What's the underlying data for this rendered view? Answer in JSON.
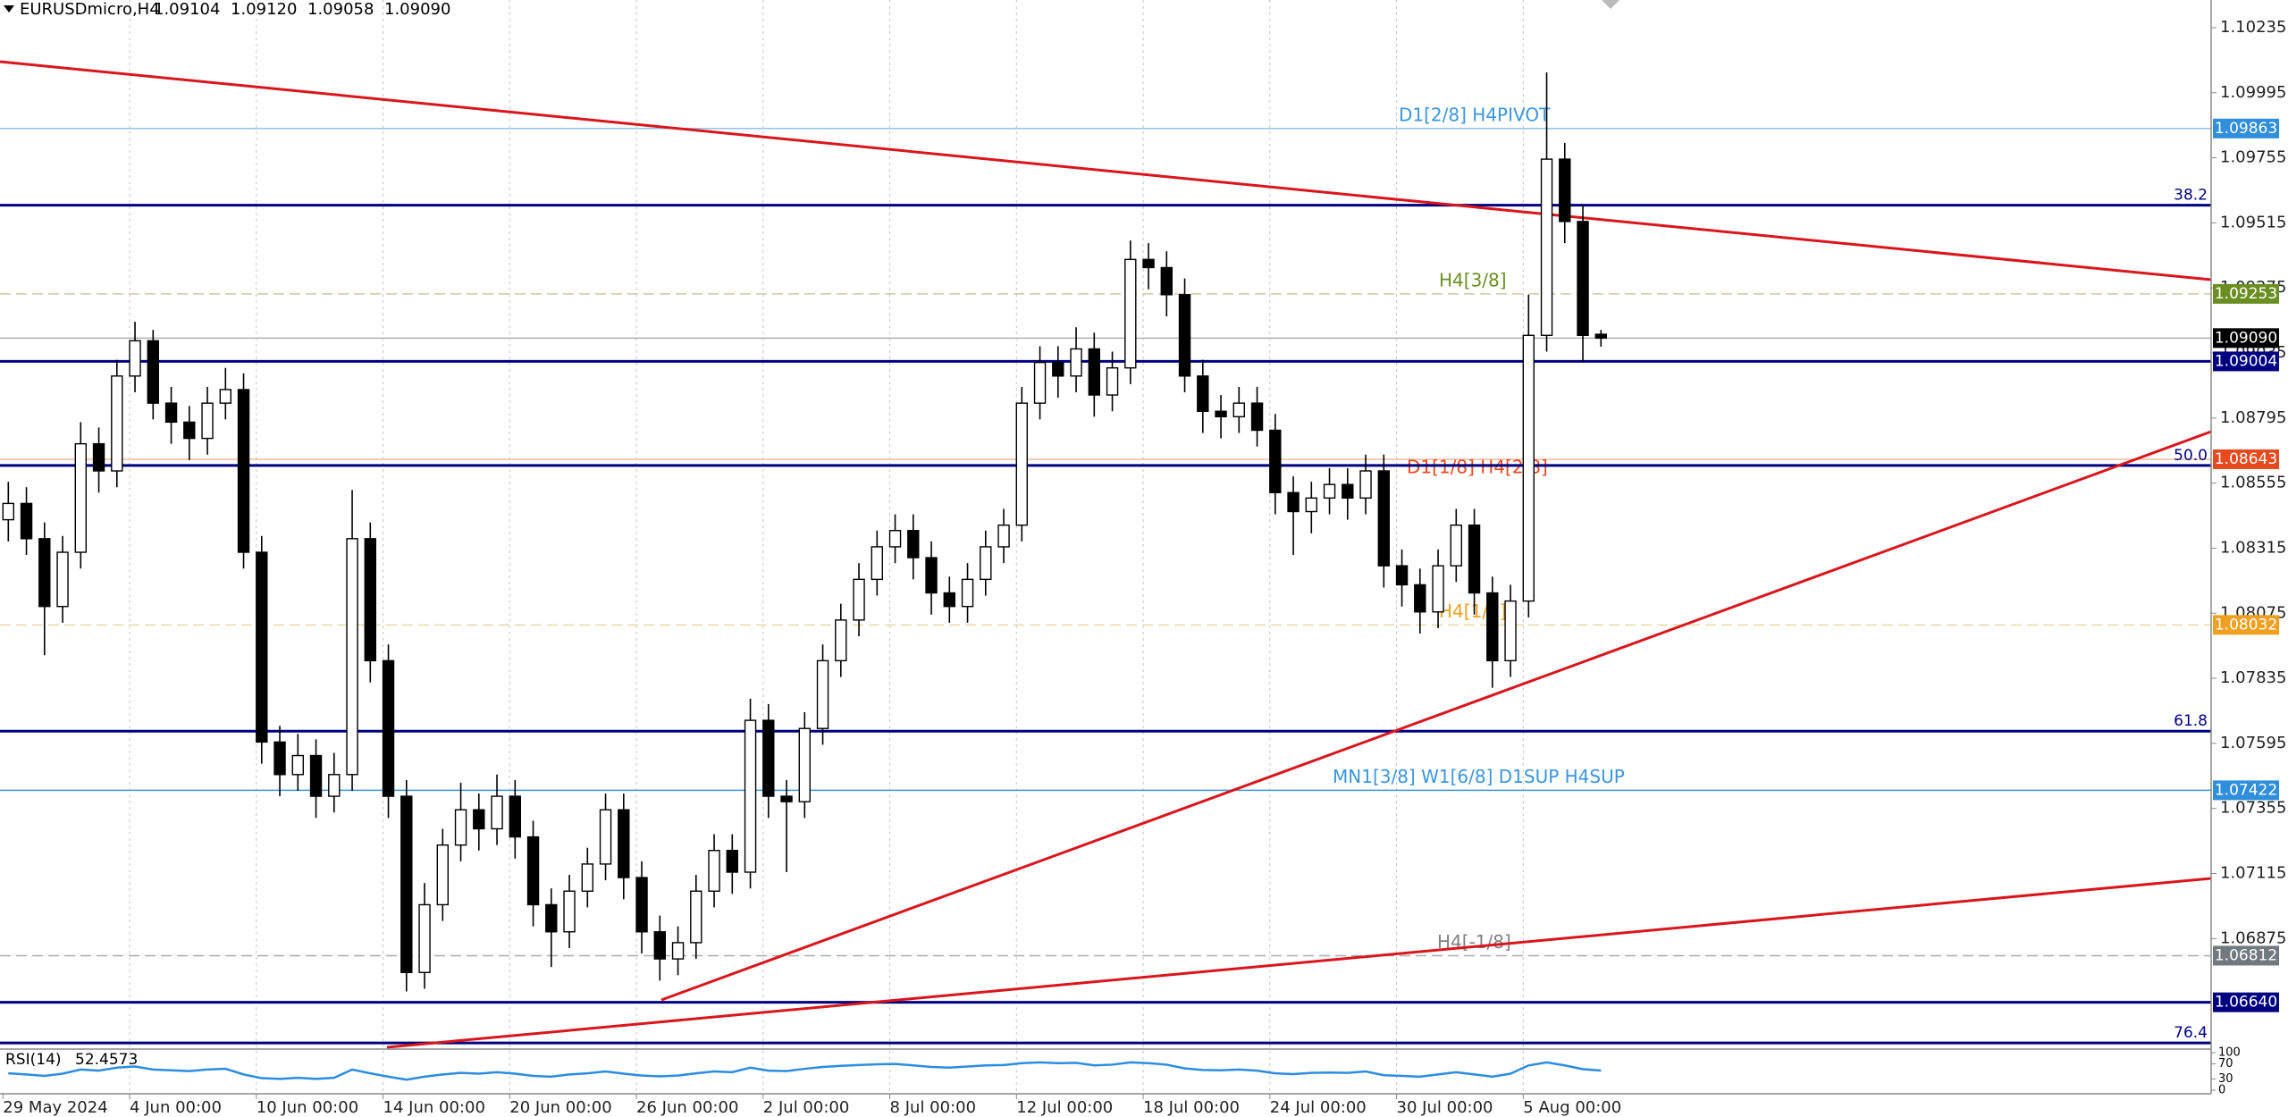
{
  "chart_data": {
    "type": "candlestick",
    "title": "EURUSDmicro,H4",
    "last_labels": [
      "1.09104",
      "1.09120",
      "1.09058",
      "1.09090"
    ],
    "categories": [
      "29 May 2024",
      null,
      null,
      null,
      null,
      null,
      null,
      "4 Jun 00:00",
      null,
      null,
      null,
      null,
      null,
      null,
      "10 Jun 00:00",
      null,
      null,
      null,
      null,
      null,
      null,
      "14 Jun 00:00",
      null,
      null,
      null,
      null,
      null,
      null,
      "20 Jun 00:00",
      null,
      null,
      null,
      null,
      null,
      null,
      "26 Jun 00:00",
      null,
      null,
      null,
      null,
      null,
      null,
      "2 Jul 00:00",
      null,
      null,
      null,
      null,
      null,
      null,
      "8 Jul 00:00",
      null,
      null,
      null,
      null,
      null,
      null,
      "12 Jul 00:00",
      null,
      null,
      null,
      null,
      null,
      null,
      "18 Jul 00:00",
      null,
      null,
      null,
      null,
      null,
      null,
      "24 Jul 00:00",
      null,
      null,
      null,
      null,
      null,
      null,
      "30 Jul 00:00",
      null,
      null,
      null,
      null,
      null,
      null,
      "5 Aug 00:00",
      null,
      null,
      null,
      null
    ],
    "open": [
      1.0842,
      1.0848,
      1.0835,
      1.081,
      1.083,
      1.087,
      1.086,
      1.0895,
      1.0908,
      1.0885,
      1.0878,
      1.0872,
      1.0885,
      1.089,
      1.083,
      1.076,
      1.0748,
      1.0755,
      1.074,
      1.0748,
      1.0835,
      1.079,
      1.074,
      1.0675,
      1.07,
      1.0722,
      1.0735,
      1.0728,
      1.074,
      1.0725,
      1.07,
      1.069,
      1.0705,
      1.0715,
      1.0735,
      1.071,
      1.069,
      1.068,
      1.0686,
      1.0705,
      1.072,
      1.0712,
      1.0768,
      1.074,
      1.0738,
      1.0765,
      1.079,
      1.0805,
      1.082,
      1.0832,
      1.0838,
      1.0828,
      1.0815,
      1.081,
      1.082,
      1.0832,
      1.084,
      1.0885,
      1.09,
      1.0895,
      1.0905,
      1.0888,
      1.0898,
      1.0938,
      1.0935,
      1.0925,
      1.0895,
      1.0882,
      1.088,
      1.0885,
      1.0875,
      1.0852,
      1.0845,
      1.085,
      1.0855,
      1.085,
      1.086,
      1.0825,
      1.0818,
      1.0808,
      1.0825,
      1.084,
      1.0815,
      1.079,
      1.0812,
      1.091,
      1.0975,
      1.0952,
      1.09104
    ],
    "high": [
      1.0856,
      1.0854,
      1.0841,
      1.0836,
      1.0878,
      1.0876,
      1.0901,
      1.0915,
      1.0912,
      1.0891,
      1.0884,
      1.0891,
      1.0898,
      1.0896,
      1.0836,
      1.0766,
      1.0763,
      1.0761,
      1.0756,
      1.0853,
      1.0841,
      1.0796,
      1.0746,
      1.0708,
      1.0728,
      1.0745,
      1.0741,
      1.0748,
      1.0746,
      1.0731,
      1.0706,
      1.0711,
      1.0721,
      1.0741,
      1.0741,
      1.0716,
      1.0696,
      1.0692,
      1.0711,
      1.0726,
      1.0726,
      1.0776,
      1.0774,
      1.0746,
      1.0771,
      1.0796,
      1.0811,
      1.0826,
      1.0838,
      1.0844,
      1.0844,
      1.0834,
      1.0821,
      1.0826,
      1.0838,
      1.0846,
      1.0891,
      1.0906,
      1.0906,
      1.0913,
      1.0911,
      1.0904,
      1.0945,
      1.0944,
      1.0941,
      1.0931,
      1.0901,
      1.0888,
      1.0891,
      1.0891,
      1.0881,
      1.0858,
      1.0856,
      1.0861,
      1.0861,
      1.0866,
      1.0866,
      1.0831,
      1.0824,
      1.0831,
      1.0846,
      1.0846,
      1.0821,
      1.0818,
      1.0925,
      1.1007,
      1.0981,
      1.0958,
      1.0912
    ],
    "low": [
      1.0834,
      1.0829,
      1.0792,
      1.0804,
      1.0824,
      1.0852,
      1.0854,
      1.0889,
      1.0879,
      1.087,
      1.0864,
      1.0866,
      1.0879,
      1.0824,
      1.0752,
      1.074,
      1.0742,
      1.0732,
      1.0734,
      1.0742,
      1.0782,
      1.0732,
      1.0668,
      1.0669,
      1.0694,
      1.0716,
      1.072,
      1.0722,
      1.0717,
      1.0692,
      1.0677,
      1.0684,
      1.0699,
      1.0709,
      1.0702,
      1.0682,
      1.0672,
      1.0674,
      1.068,
      1.0699,
      1.0704,
      1.0706,
      1.0732,
      1.0712,
      1.0732,
      1.0759,
      1.0784,
      1.0799,
      1.0814,
      1.0826,
      1.082,
      1.0807,
      1.0804,
      1.0804,
      1.0814,
      1.0826,
      1.0834,
      1.0879,
      1.0887,
      1.0889,
      1.088,
      1.0882,
      1.0892,
      1.0927,
      1.0917,
      1.0889,
      1.0874,
      1.0872,
      1.0874,
      1.0869,
      1.0844,
      1.0829,
      1.0837,
      1.0844,
      1.0842,
      1.0844,
      1.0817,
      1.081,
      1.08,
      1.0802,
      1.0819,
      1.0807,
      1.078,
      1.0784,
      1.0806,
      1.0904,
      1.0944,
      1.09,
      1.09058
    ],
    "close": [
      1.0848,
      1.0835,
      1.081,
      1.083,
      1.087,
      1.086,
      1.0895,
      1.0908,
      1.0885,
      1.0878,
      1.0872,
      1.0885,
      1.089,
      1.083,
      1.076,
      1.0748,
      1.0755,
      1.074,
      1.0748,
      1.0835,
      1.079,
      1.074,
      1.0675,
      1.07,
      1.0722,
      1.0735,
      1.0728,
      1.074,
      1.0725,
      1.07,
      1.069,
      1.0705,
      1.0715,
      1.0735,
      1.071,
      1.069,
      1.068,
      1.0686,
      1.0705,
      1.072,
      1.0712,
      1.0768,
      1.074,
      1.0738,
      1.0765,
      1.079,
      1.0805,
      1.082,
      1.0832,
      1.0838,
      1.0828,
      1.0815,
      1.081,
      1.082,
      1.0832,
      1.084,
      1.0885,
      1.09,
      1.0895,
      1.0905,
      1.0888,
      1.0898,
      1.0938,
      1.0935,
      1.0925,
      1.0895,
      1.0882,
      1.088,
      1.0885,
      1.0875,
      1.0852,
      1.0845,
      1.085,
      1.0855,
      1.085,
      1.086,
      1.0825,
      1.0818,
      1.0808,
      1.0825,
      1.084,
      1.0815,
      1.079,
      1.0812,
      1.091,
      1.0975,
      1.0952,
      1.091,
      1.0909
    ],
    "up_color": "#ffffff",
    "down_color": "#000000",
    "wick_color": "#000000",
    "ylim": [
      1.06474,
      1.10337
    ],
    "yticks": [
      1.10235,
      1.09995,
      1.09755,
      1.09515,
      1.09275,
      1.09035,
      1.08795,
      1.08555,
      1.08315,
      1.08075,
      1.07835,
      1.07595,
      1.07355,
      1.07115,
      1.06875
    ],
    "grid": true,
    "levels": [
      {
        "value": 1.09863,
        "value_label": "1.09863",
        "color": "#8fc3ea",
        "box": "#2f8fdc",
        "dashed": false,
        "text": "D1[2/8] H4PIVOT",
        "text_color": "#3a96dd"
      },
      {
        "value": 1.09253,
        "value_label": "1.09253",
        "color": "#c9c9a3",
        "box": "#6b8e23",
        "dashed": true,
        "text": "H4[3/8]",
        "text_color": "#6b8e23"
      },
      {
        "value": 1.0909,
        "value_label": "1.09090",
        "color": "#b0b0b0",
        "box": "#000000",
        "dashed": false
      },
      {
        "value": 1.09004,
        "value_label": "1.09004",
        "color": "#000080",
        "box": "#000080",
        "dashed": false
      },
      {
        "value": 1.08643,
        "value_label": "1.08643",
        "color": "#f0b8a0",
        "box": "#e8491d",
        "dashed": false,
        "text": "D1[1/8] H4[2/8]",
        "text_color": "#e8491d"
      },
      {
        "value": 1.08032,
        "value_label": "1.08032",
        "color": "#e6d9a0",
        "box": "#f0a020",
        "dashed": true,
        "text": "H4[1/8]",
        "text_color": "#f0a020"
      },
      {
        "value": 1.07422,
        "value_label": "1.07422",
        "color": "#3a96dd",
        "box": "#2f8fdc",
        "dashed": false,
        "text": "MN1[3/8] W1[6/8] D1SUP H4SUP",
        "text_color": "#3a96dd"
      },
      {
        "value": 1.06812,
        "value_label": "1.06812",
        "color": "#aaaaaa",
        "box": "#707880",
        "dashed": true,
        "text": "H4[-1/8]",
        "text_color": "#808080"
      },
      {
        "value": 1.0664,
        "value_label": "1.06640",
        "color": "#000080",
        "box": "#000080",
        "dashed": false
      }
    ],
    "fibs": {
      "labels": [
        "38.2",
        "50.0",
        "61.8",
        "76.4"
      ],
      "prices": [
        1.0958,
        1.0862,
        1.0764,
        1.0649
      ],
      "color": "#000080"
    },
    "rsi": {
      "name": "RSI(14)",
      "color": "#2b8de0",
      "ylim": [
        0,
        100
      ],
      "yticks": [
        100,
        70,
        30,
        0
      ],
      "values": [
        45,
        42,
        38,
        44,
        55,
        52,
        60,
        63,
        55,
        53,
        51,
        55,
        57,
        42,
        32,
        30,
        33,
        30,
        33,
        55,
        45,
        36,
        28,
        36,
        42,
        46,
        44,
        48,
        44,
        38,
        36,
        42,
        45,
        50,
        44,
        39,
        37,
        39,
        45,
        50,
        48,
        60,
        52,
        51,
        57,
        62,
        65,
        67,
        69,
        70,
        66,
        62,
        60,
        63,
        66,
        67,
        72,
        74,
        72,
        73,
        66,
        68,
        74,
        72,
        68,
        58,
        54,
        53,
        55,
        52,
        45,
        43,
        46,
        47,
        46,
        50,
        40,
        38,
        36,
        42,
        48,
        42,
        36,
        44,
        66,
        74,
        66,
        56,
        52.4573
      ]
    }
  }
}
